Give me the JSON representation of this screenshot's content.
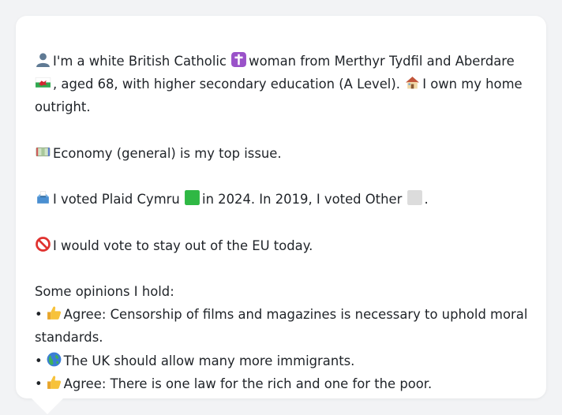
{
  "profile": {
    "line1_a": "I'm a white British Catholic",
    "line1_b": "woman from Merthyr Tydfil and Aberdare",
    "line1_c": ", aged 68, with higher secondary education (A Level).",
    "line1_d": "I own my home outright."
  },
  "issue": {
    "text": "Economy (general) is my top issue."
  },
  "votes": {
    "text_a": "I voted Plaid Cymru",
    "text_b": "in 2024. In 2019, I voted Other",
    "text_c": "."
  },
  "eu": {
    "text": "I would vote to stay out of the EU today."
  },
  "opinions": {
    "heading": "Some opinions I hold:",
    "bullet": "•",
    "items": [
      {
        "icon": "thumbs-up-icon",
        "text": "Agree: Censorship of films and magazines is necessary to uphold moral standards."
      },
      {
        "icon": "globe-icon",
        "text": "The UK should allow many more immigrants."
      },
      {
        "icon": "thumbs-up-icon",
        "text": "Agree: There is one law for the rich and one for the poor."
      }
    ]
  },
  "icons": {
    "person": "person-silhouette-icon",
    "cross": "latin-cross-icon",
    "wales_flag": "wales-flag-icon",
    "house": "house-icon",
    "money": "money-with-wings-icon",
    "ballot": "ballot-box-icon",
    "green_square": "green-square-icon",
    "white_square": "white-square-icon",
    "prohibited": "prohibited-icon",
    "thumbs_up": "thumbs-up-icon",
    "globe": "globe-icon"
  },
  "colors": {
    "background": "#f2f3f5",
    "bubble": "#ffffff",
    "text": "#1f2328",
    "plaid_green": "#2fb844",
    "other_grey": "#dcdcdc"
  }
}
